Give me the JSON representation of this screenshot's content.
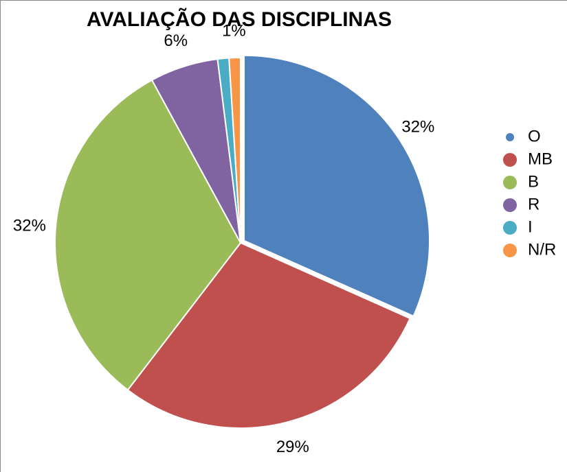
{
  "chart_data": {
    "type": "pie",
    "title": "AVALIAÇÃO DAS DISCIPLINAS",
    "categories": [
      "O",
      "MB",
      "B",
      "R",
      "I",
      "N/R"
    ],
    "values": [
      32,
      29,
      32,
      6,
      1,
      1
    ],
    "value_labels": [
      "32%",
      "29%",
      "32%",
      "6%",
      null,
      "1%"
    ],
    "colors": [
      "#4f81bd",
      "#c0504d",
      "#9bbb59",
      "#8064a2",
      "#4bacc6",
      "#f79646"
    ],
    "legend": "right"
  }
}
